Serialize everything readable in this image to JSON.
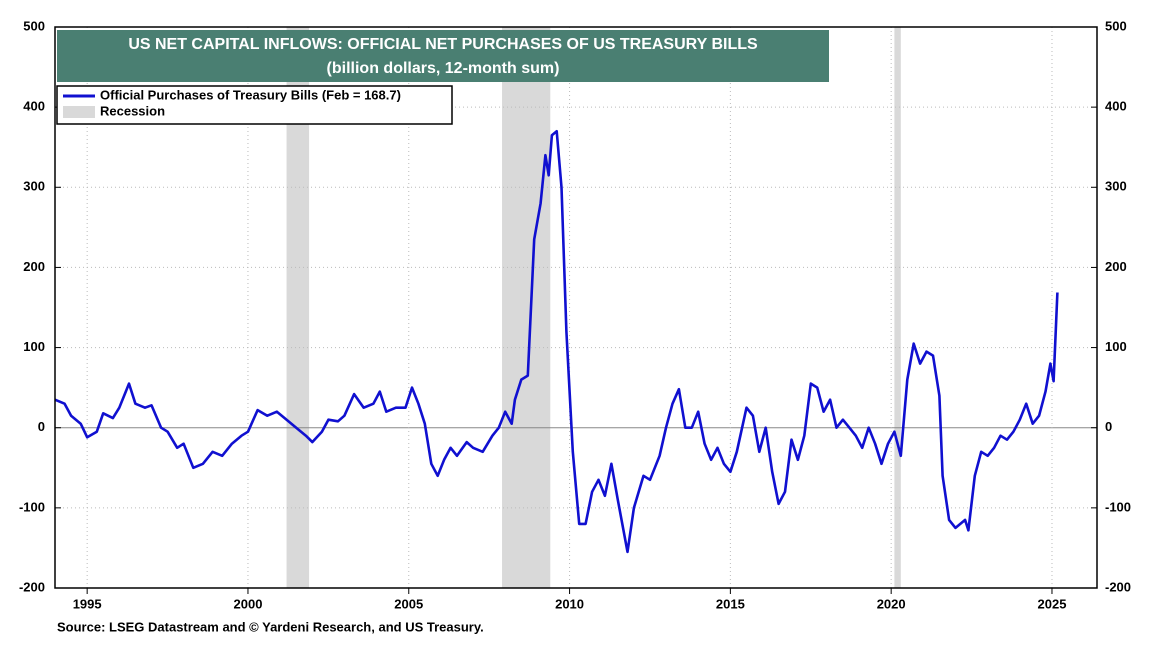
{
  "chart_data": {
    "type": "line",
    "title": "US NET CAPITAL INFLOWS: OFFICIAL NET PURCHASES OF US TREASURY BILLS",
    "subtitle": "(billion dollars, 12-month sum)",
    "source": "Source: LSEG Datastream and © Yardeni Research, and US Treasury.",
    "xlim": [
      1994,
      2026.4
    ],
    "xticks": [
      1995,
      2000,
      2005,
      2010,
      2015,
      2020,
      2025
    ],
    "ylim": [
      -200,
      500
    ],
    "yticks": [
      -200,
      -100,
      0,
      100,
      200,
      300,
      400,
      500
    ],
    "y2lim": [
      -200,
      500
    ],
    "y2ticks": [
      -200,
      -100,
      0,
      100,
      200,
      300,
      400,
      500
    ],
    "grid": true,
    "legend": "upper left",
    "recession_name": "Recession",
    "recession_color": "#d9d9d9",
    "recessions": [
      [
        2001.2,
        2001.9
      ],
      [
        2007.9,
        2009.4
      ],
      [
        2020.1,
        2020.3
      ]
    ],
    "x": [
      1994.0,
      1994.3,
      1994.5,
      1994.8,
      1995.0,
      1995.3,
      1995.5,
      1995.8,
      1996.0,
      1996.3,
      1996.5,
      1996.8,
      1997.0,
      1997.3,
      1997.5,
      1997.8,
      1998.0,
      1998.3,
      1998.6,
      1998.9,
      1999.2,
      1999.5,
      1999.8,
      2000.0,
      2000.3,
      2000.6,
      2000.9,
      2001.2,
      2001.5,
      2001.8,
      2002.0,
      2002.3,
      2002.5,
      2002.8,
      2003.0,
      2003.3,
      2003.6,
      2003.9,
      2004.1,
      2004.3,
      2004.6,
      2004.9,
      2005.1,
      2005.3,
      2005.5,
      2005.7,
      2005.9,
      2006.1,
      2006.3,
      2006.5,
      2006.8,
      2007.0,
      2007.3,
      2007.6,
      2007.8,
      2008.0,
      2008.2,
      2008.3,
      2008.5,
      2008.7,
      2008.9,
      2009.1,
      2009.25,
      2009.35,
      2009.45,
      2009.6,
      2009.75,
      2009.9,
      2010.1,
      2010.3,
      2010.5,
      2010.7,
      2010.9,
      2011.1,
      2011.3,
      2011.5,
      2011.8,
      2012.0,
      2012.3,
      2012.5,
      2012.8,
      2013.0,
      2013.2,
      2013.4,
      2013.6,
      2013.8,
      2014.0,
      2014.2,
      2014.4,
      2014.6,
      2014.8,
      2015.0,
      2015.2,
      2015.5,
      2015.7,
      2015.9,
      2016.1,
      2016.3,
      2016.5,
      2016.7,
      2016.9,
      2017.1,
      2017.3,
      2017.5,
      2017.7,
      2017.9,
      2018.1,
      2018.3,
      2018.5,
      2018.7,
      2018.9,
      2019.1,
      2019.3,
      2019.5,
      2019.7,
      2019.9,
      2020.1,
      2020.3,
      2020.5,
      2020.7,
      2020.9,
      2021.1,
      2021.3,
      2021.5,
      2021.6,
      2021.8,
      2022.0,
      2022.3,
      2022.4,
      2022.6,
      2022.8,
      2023.0,
      2023.2,
      2023.4,
      2023.6,
      2023.8,
      2024.0,
      2024.2,
      2024.4,
      2024.6,
      2024.8,
      2024.95,
      2025.05,
      2025.17
    ],
    "series": [
      {
        "name": "Official Purchases of Treasury Bills (Feb = 168.7)",
        "color": "#1010d0",
        "values": [
          35,
          30,
          15,
          5,
          -12,
          -5,
          18,
          12,
          25,
          55,
          30,
          25,
          28,
          0,
          -5,
          -25,
          -20,
          -50,
          -45,
          -30,
          -35,
          -20,
          -10,
          -5,
          22,
          15,
          20,
          10,
          0,
          -10,
          -18,
          -5,
          10,
          8,
          15,
          42,
          25,
          30,
          45,
          20,
          25,
          25,
          50,
          30,
          5,
          -45,
          -60,
          -40,
          -25,
          -35,
          -18,
          -25,
          -30,
          -10,
          0,
          20,
          5,
          35,
          60,
          65,
          235,
          280,
          340,
          315,
          365,
          370,
          300,
          120,
          -30,
          -120,
          -120,
          -80,
          -65,
          -85,
          -45,
          -90,
          -155,
          -100,
          -60,
          -65,
          -35,
          0,
          30,
          48,
          0,
          0,
          20,
          -20,
          -40,
          -25,
          -45,
          -55,
          -30,
          25,
          15,
          -30,
          0,
          -55,
          -95,
          -80,
          -15,
          -40,
          -10,
          55,
          50,
          20,
          35,
          0,
          10,
          0,
          -10,
          -25,
          0,
          -20,
          -45,
          -20,
          -5,
          -35,
          60,
          105,
          80,
          95,
          90,
          40,
          -60,
          -115,
          -125,
          -115,
          -128,
          -60,
          -30,
          -35,
          -25,
          -10,
          -15,
          -5,
          10,
          30,
          5,
          15,
          45,
          80,
          58,
          168.7
        ]
      }
    ]
  }
}
